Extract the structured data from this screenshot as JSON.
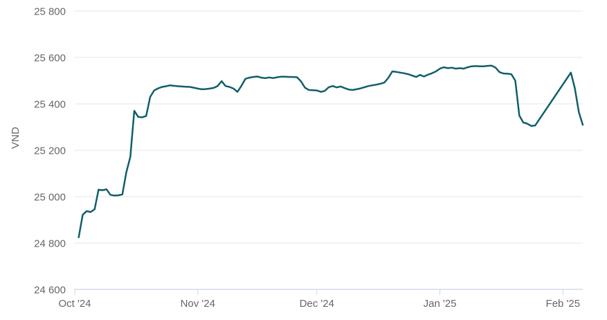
{
  "chart_data": {
    "type": "line",
    "title": "",
    "xlabel": "",
    "ylabel": "VND",
    "ylim": [
      24600,
      25800
    ],
    "y_tick_interval": 200,
    "grid": true,
    "legend": "none",
    "x_range": [
      "2024-10-01",
      "2025-02-06"
    ],
    "y_ticks": [
      {
        "value": 25800,
        "label": "25 800"
      },
      {
        "value": 25600,
        "label": "25 600"
      },
      {
        "value": 25400,
        "label": "25 400"
      },
      {
        "value": 25200,
        "label": "25 200"
      },
      {
        "value": 25000,
        "label": "25 000"
      },
      {
        "value": 24800,
        "label": "24 800"
      },
      {
        "value": 24600,
        "label": "24 600"
      }
    ],
    "x_ticks": [
      {
        "date": "2024-10-01",
        "label": "Oct '24"
      },
      {
        "date": "2024-11-01",
        "label": "Nov '24"
      },
      {
        "date": "2024-12-01",
        "label": "Dec '24"
      },
      {
        "date": "2025-01-01",
        "label": "Jan '25"
      },
      {
        "date": "2025-02-01",
        "label": "Feb '25"
      }
    ],
    "series": [
      {
        "name": "VND",
        "color": "#115e68",
        "points": [
          [
            "2024-10-02",
            24825
          ],
          [
            "2024-10-03",
            24922
          ],
          [
            "2024-10-04",
            24938
          ],
          [
            "2024-10-05",
            24934
          ],
          [
            "2024-10-06",
            24946
          ],
          [
            "2024-10-07",
            25030
          ],
          [
            "2024-10-08",
            25028
          ],
          [
            "2024-10-09",
            25032
          ],
          [
            "2024-10-10",
            25008
          ],
          [
            "2024-10-11",
            25005
          ],
          [
            "2024-10-12",
            25006
          ],
          [
            "2024-10-13",
            25010
          ],
          [
            "2024-10-14",
            25105
          ],
          [
            "2024-10-15",
            25172
          ],
          [
            "2024-10-16",
            25370
          ],
          [
            "2024-10-17",
            25344
          ],
          [
            "2024-10-18",
            25342
          ],
          [
            "2024-10-19",
            25348
          ],
          [
            "2024-10-20",
            25430
          ],
          [
            "2024-10-21",
            25458
          ],
          [
            "2024-10-22",
            25467
          ],
          [
            "2024-10-23",
            25473
          ],
          [
            "2024-10-24",
            25476
          ],
          [
            "2024-10-25",
            25480
          ],
          [
            "2024-10-26",
            25478
          ],
          [
            "2024-10-27",
            25476
          ],
          [
            "2024-10-28",
            25475
          ],
          [
            "2024-10-29",
            25474
          ],
          [
            "2024-10-30",
            25473
          ],
          [
            "2024-10-31",
            25470
          ],
          [
            "2024-11-01",
            25466
          ],
          [
            "2024-11-02",
            25463
          ],
          [
            "2024-11-03",
            25464
          ],
          [
            "2024-11-04",
            25466
          ],
          [
            "2024-11-05",
            25469
          ],
          [
            "2024-11-06",
            25477
          ],
          [
            "2024-11-07",
            25498
          ],
          [
            "2024-11-08",
            25477
          ],
          [
            "2024-11-09",
            25473
          ],
          [
            "2024-11-10",
            25466
          ],
          [
            "2024-11-11",
            25452
          ],
          [
            "2024-11-12",
            25478
          ],
          [
            "2024-11-13",
            25508
          ],
          [
            "2024-11-14",
            25513
          ],
          [
            "2024-11-15",
            25516
          ],
          [
            "2024-11-16",
            25518
          ],
          [
            "2024-11-17",
            25513
          ],
          [
            "2024-11-18",
            25511
          ],
          [
            "2024-11-19",
            25514
          ],
          [
            "2024-11-20",
            25511
          ],
          [
            "2024-11-21",
            25515
          ],
          [
            "2024-11-22",
            25517
          ],
          [
            "2024-11-23",
            25517
          ],
          [
            "2024-11-24",
            25516
          ],
          [
            "2024-11-25",
            25516
          ],
          [
            "2024-11-26",
            25515
          ],
          [
            "2024-11-27",
            25497
          ],
          [
            "2024-11-28",
            25470
          ],
          [
            "2024-11-29",
            25460
          ],
          [
            "2024-11-30",
            25459
          ],
          [
            "2024-12-01",
            25458
          ],
          [
            "2024-12-02",
            25452
          ],
          [
            "2024-12-03",
            25456
          ],
          [
            "2024-12-04",
            25472
          ],
          [
            "2024-12-05",
            25477
          ],
          [
            "2024-12-06",
            25471
          ],
          [
            "2024-12-07",
            25475
          ],
          [
            "2024-12-08",
            25468
          ],
          [
            "2024-12-09",
            25462
          ],
          [
            "2024-12-10",
            25460
          ],
          [
            "2024-12-11",
            25463
          ],
          [
            "2024-12-12",
            25467
          ],
          [
            "2024-12-13",
            25472
          ],
          [
            "2024-12-14",
            25477
          ],
          [
            "2024-12-15",
            25480
          ],
          [
            "2024-12-16",
            25483
          ],
          [
            "2024-12-17",
            25487
          ],
          [
            "2024-12-18",
            25492
          ],
          [
            "2024-12-19",
            25512
          ],
          [
            "2024-12-20",
            25540
          ],
          [
            "2024-12-21",
            25538
          ],
          [
            "2024-12-22",
            25535
          ],
          [
            "2024-12-23",
            25532
          ],
          [
            "2024-12-24",
            25528
          ],
          [
            "2024-12-25",
            25522
          ],
          [
            "2024-12-26",
            25516
          ],
          [
            "2024-12-27",
            25525
          ],
          [
            "2024-12-28",
            25518
          ],
          [
            "2024-12-29",
            25526
          ],
          [
            "2024-12-30",
            25532
          ],
          [
            "2024-12-31",
            25540
          ],
          [
            "2025-01-01",
            25552
          ],
          [
            "2025-01-02",
            25558
          ],
          [
            "2025-01-03",
            25554
          ],
          [
            "2025-01-04",
            25556
          ],
          [
            "2025-01-05",
            25552
          ],
          [
            "2025-01-06",
            25554
          ],
          [
            "2025-01-07",
            25552
          ],
          [
            "2025-01-08",
            25558
          ],
          [
            "2025-01-09",
            25562
          ],
          [
            "2025-01-10",
            25563
          ],
          [
            "2025-01-11",
            25562
          ],
          [
            "2025-01-12",
            25562
          ],
          [
            "2025-01-13",
            25564
          ],
          [
            "2025-01-14",
            25565
          ],
          [
            "2025-01-15",
            25557
          ],
          [
            "2025-01-16",
            25537
          ],
          [
            "2025-01-17",
            25531
          ],
          [
            "2025-01-18",
            25530
          ],
          [
            "2025-01-19",
            25528
          ],
          [
            "2025-01-20",
            25500
          ],
          [
            "2025-01-21",
            25350
          ],
          [
            "2025-01-22",
            25320
          ],
          [
            "2025-01-23",
            25315
          ],
          [
            "2025-01-24",
            25305
          ],
          [
            "2025-01-25",
            25307
          ],
          [
            "2025-02-03",
            25535
          ],
          [
            "2025-02-04",
            25468
          ],
          [
            "2025-02-05",
            25365
          ],
          [
            "2025-02-06",
            25310
          ]
        ]
      }
    ]
  },
  "colors": {
    "line": "#115e68",
    "grid": "#e6e6e6",
    "axis_line": "#ccd6eb",
    "tick": "#ccd6eb",
    "label": "#666666",
    "background": "#ffffff"
  }
}
